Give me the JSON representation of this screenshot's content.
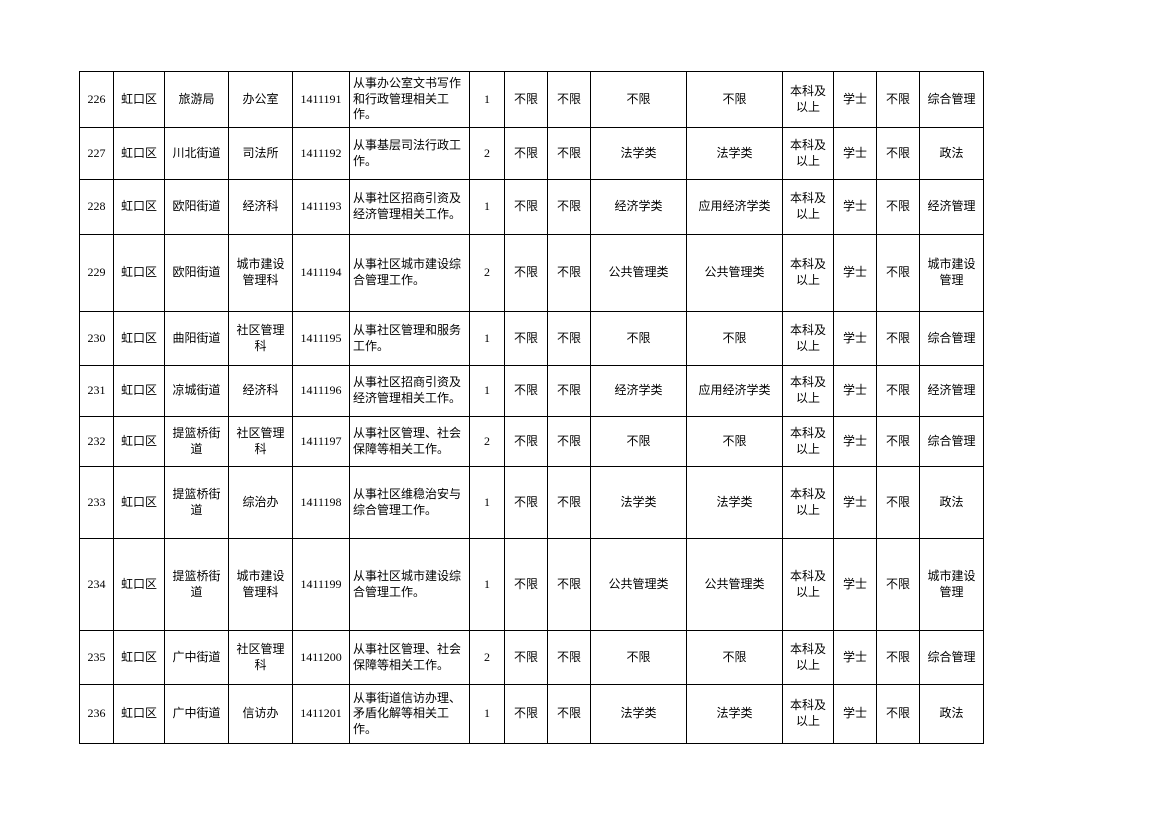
{
  "table": {
    "columns": [
      {
        "key": "idx",
        "class": "col-idx"
      },
      {
        "key": "area",
        "class": "col-area"
      },
      {
        "key": "dept",
        "class": "col-dept"
      },
      {
        "key": "office",
        "class": "col-office"
      },
      {
        "key": "code",
        "class": "col-code"
      },
      {
        "key": "desc",
        "class": "col-desc"
      },
      {
        "key": "num",
        "class": "col-num"
      },
      {
        "key": "c8",
        "class": "col-c8"
      },
      {
        "key": "c9",
        "class": "col-c9"
      },
      {
        "key": "c10",
        "class": "col-c10"
      },
      {
        "key": "c11",
        "class": "col-c11"
      },
      {
        "key": "c12",
        "class": "col-c12"
      },
      {
        "key": "c13",
        "class": "col-c13"
      },
      {
        "key": "c14",
        "class": "col-c14"
      },
      {
        "key": "c15",
        "class": "col-c15"
      }
    ],
    "rows": [
      {
        "idx": "226",
        "area": "虹口区",
        "dept": "旅游局",
        "office": "办公室",
        "code": "1411191",
        "desc": "从事办公室文书写作和行政管理相关工作。",
        "num": "1",
        "c8": "不限",
        "c9": "不限",
        "c10": "不限",
        "c11": "不限",
        "c12": "本科及以上",
        "c13": "学士",
        "c14": "不限",
        "c15": "综合管理",
        "h": "h-0"
      },
      {
        "idx": "227",
        "area": "虹口区",
        "dept": "川北街道",
        "office": "司法所",
        "code": "1411192",
        "desc": "从事基层司法行政工作。",
        "num": "2",
        "c8": "不限",
        "c9": "不限",
        "c10": "法学类",
        "c11": "法学类",
        "c12": "本科及以上",
        "c13": "学士",
        "c14": "不限",
        "c15": "政法",
        "h": "h-1"
      },
      {
        "idx": "228",
        "area": "虹口区",
        "dept": "欧阳街道",
        "office": "经济科",
        "code": "1411193",
        "desc": "从事社区招商引资及经济管理相关工作。",
        "num": "1",
        "c8": "不限",
        "c9": "不限",
        "c10": "经济学类",
        "c11": "应用经济学类",
        "c12": "本科及以上",
        "c13": "学士",
        "c14": "不限",
        "c15": "经济管理",
        "h": "h-2"
      },
      {
        "idx": "229",
        "area": "虹口区",
        "dept": "欧阳街道",
        "office": "城市建设管理科",
        "code": "1411194",
        "desc": "从事社区城市建设综合管理工作。",
        "num": "2",
        "c8": "不限",
        "c9": "不限",
        "c10": "公共管理类",
        "c11": "公共管理类",
        "c12": "本科及以上",
        "c13": "学士",
        "c14": "不限",
        "c15": "城市建设管理",
        "h": "h-3"
      },
      {
        "idx": "230",
        "area": "虹口区",
        "dept": "曲阳街道",
        "office": "社区管理科",
        "code": "1411195",
        "desc": "从事社区管理和服务工作。",
        "num": "1",
        "c8": "不限",
        "c9": "不限",
        "c10": "不限",
        "c11": "不限",
        "c12": "本科及以上",
        "c13": "学士",
        "c14": "不限",
        "c15": "综合管理",
        "h": "h-4"
      },
      {
        "idx": "231",
        "area": "虹口区",
        "dept": "凉城街道",
        "office": "经济科",
        "code": "1411196",
        "desc": "从事社区招商引资及经济管理相关工作。",
        "num": "1",
        "c8": "不限",
        "c9": "不限",
        "c10": "经济学类",
        "c11": "应用经济学类",
        "c12": "本科及以上",
        "c13": "学士",
        "c14": "不限",
        "c15": "经济管理",
        "h": "h-5"
      },
      {
        "idx": "232",
        "area": "虹口区",
        "dept": "提篮桥街道",
        "office": "社区管理科",
        "code": "1411197",
        "desc": "从事社区管理、社会保障等相关工作。",
        "num": "2",
        "c8": "不限",
        "c9": "不限",
        "c10": "不限",
        "c11": "不限",
        "c12": "本科及以上",
        "c13": "学士",
        "c14": "不限",
        "c15": "综合管理",
        "h": "h-6"
      },
      {
        "idx": "233",
        "area": "虹口区",
        "dept": "提篮桥街道",
        "office": "综治办",
        "code": "1411198",
        "desc": "从事社区维稳治安与综合管理工作。",
        "num": "1",
        "c8": "不限",
        "c9": "不限",
        "c10": "法学类",
        "c11": "法学类",
        "c12": "本科及以上",
        "c13": "学士",
        "c14": "不限",
        "c15": "政法",
        "h": "h-7"
      },
      {
        "idx": "234",
        "area": "虹口区",
        "dept": "提篮桥街道",
        "office": "城市建设管理科",
        "code": "1411199",
        "desc": "从事社区城市建设综合管理工作。",
        "num": "1",
        "c8": "不限",
        "c9": "不限",
        "c10": "公共管理类",
        "c11": "公共管理类",
        "c12": "本科及以上",
        "c13": "学士",
        "c14": "不限",
        "c15": "城市建设管理",
        "h": "h-8"
      },
      {
        "idx": "235",
        "area": "虹口区",
        "dept": "广中街道",
        "office": "社区管理科",
        "code": "1411200",
        "desc": "从事社区管理、社会保障等相关工作。",
        "num": "2",
        "c8": "不限",
        "c9": "不限",
        "c10": "不限",
        "c11": "不限",
        "c12": "本科及以上",
        "c13": "学士",
        "c14": "不限",
        "c15": "综合管理",
        "h": "h-9"
      },
      {
        "idx": "236",
        "area": "虹口区",
        "dept": "广中街道",
        "office": "信访办",
        "code": "1411201",
        "desc": "从事街道信访办理、矛盾化解等相关工作。",
        "num": "1",
        "c8": "不限",
        "c9": "不限",
        "c10": "法学类",
        "c11": "法学类",
        "c12": "本科及以上",
        "c13": "学士",
        "c14": "不限",
        "c15": "政法",
        "h": "h-10"
      }
    ]
  }
}
